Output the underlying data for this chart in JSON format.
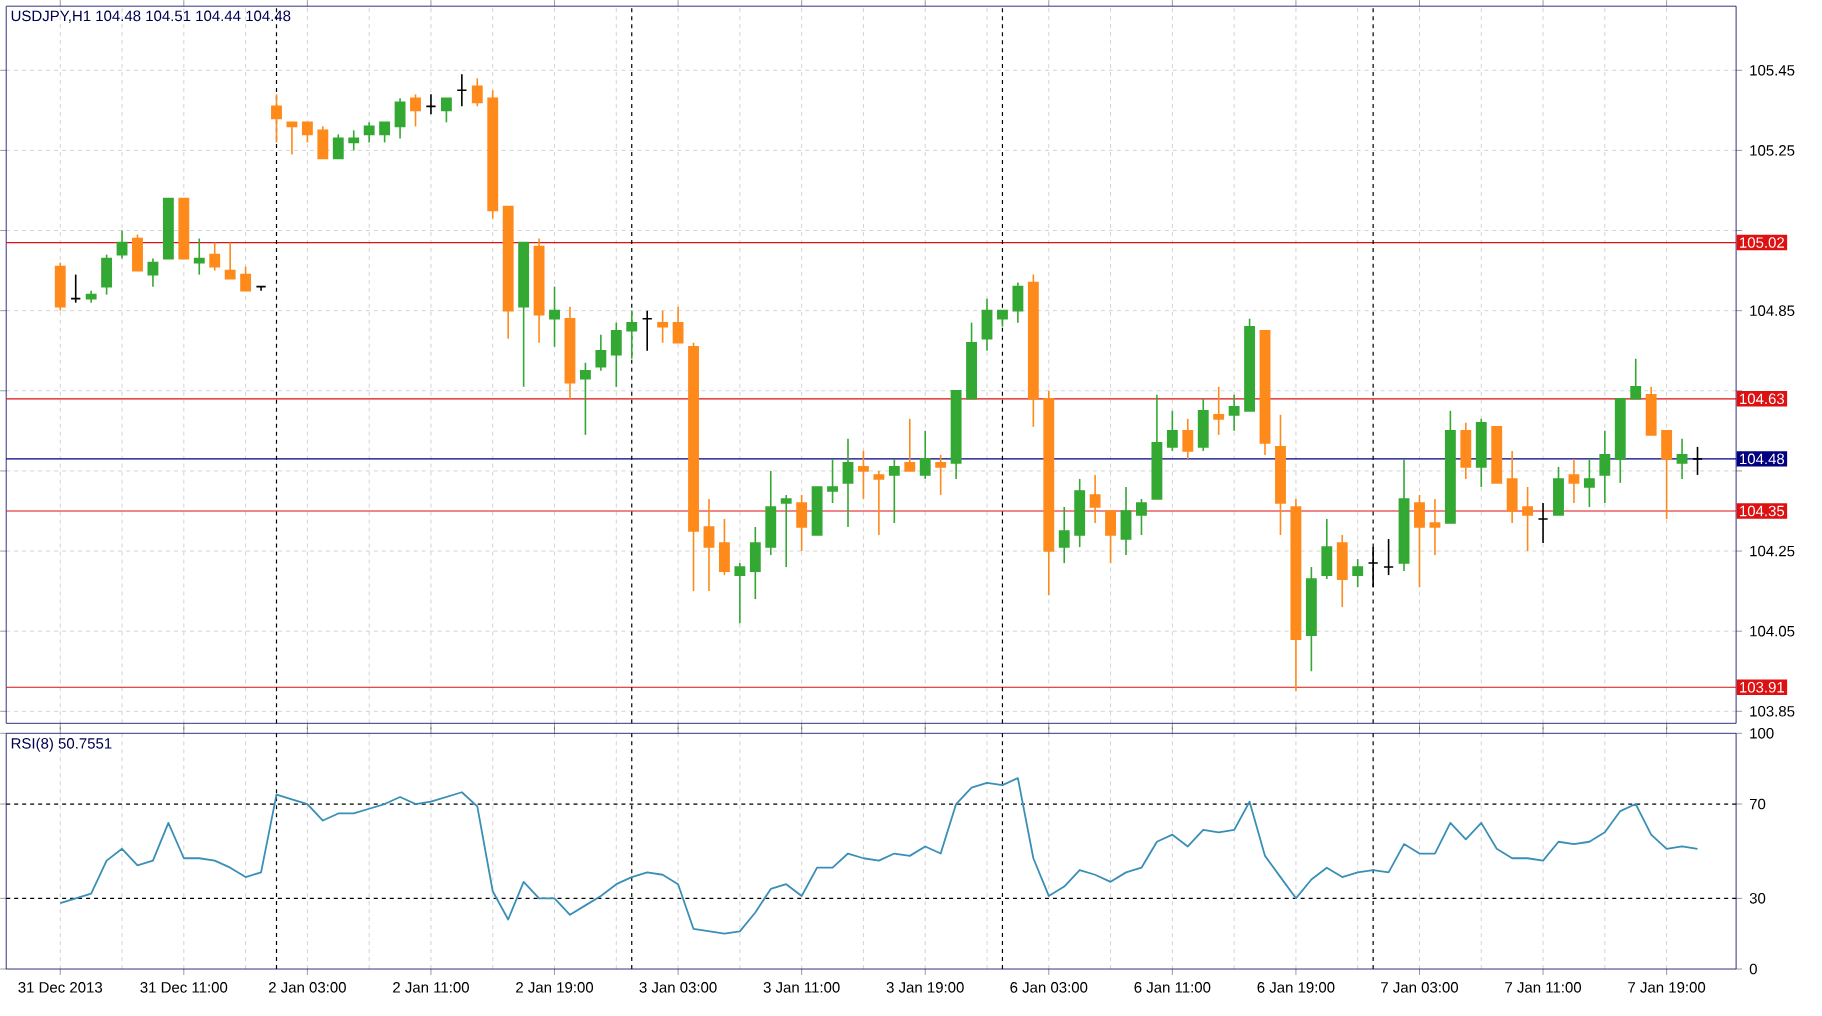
{
  "chart_data": [
    {
      "type": "candlestick",
      "title": "USDJPY,H1 104.48 104.51 104.44 104.48",
      "categories": [
        null,
        null,
        null,
        null,
        null,
        null,
        null,
        null,
        null,
        null,
        null,
        null,
        null,
        null,
        null,
        null,
        null,
        null,
        null,
        null,
        null,
        null,
        null,
        null,
        null,
        null,
        null,
        null,
        null,
        null,
        null,
        null,
        null,
        null,
        null,
        null,
        null,
        null,
        null,
        null,
        null,
        null,
        null,
        null,
        null,
        null,
        null,
        null,
        null,
        null,
        null,
        null,
        null,
        null,
        null,
        null,
        null,
        null,
        null,
        null,
        null,
        null,
        null,
        null,
        null,
        null,
        null,
        null,
        null,
        null,
        null,
        null,
        null,
        null,
        null,
        null,
        null,
        null,
        null,
        null,
        null,
        null,
        null,
        null,
        null,
        null,
        null,
        null,
        null,
        null,
        null,
        null,
        null,
        null,
        null,
        null,
        null,
        null,
        null,
        null,
        null,
        null,
        null,
        null,
        null,
        null,
        null
      ],
      "ohlc": [
        [
          104.96,
          104.97,
          104.85,
          104.86
        ],
        [
          104.88,
          104.94,
          104.87,
          104.88
        ],
        [
          104.88,
          104.9,
          104.87,
          104.89
        ],
        [
          104.91,
          104.99,
          104.89,
          104.98
        ],
        [
          104.99,
          105.05,
          104.98,
          105.02
        ],
        [
          105.03,
          105.04,
          104.95,
          104.95
        ],
        [
          104.94,
          104.98,
          104.91,
          104.97
        ],
        [
          104.98,
          105.13,
          104.98,
          105.13
        ],
        [
          105.13,
          105.13,
          104.98,
          104.98
        ],
        [
          104.97,
          105.03,
          104.94,
          104.98
        ],
        [
          104.99,
          105.02,
          104.95,
          104.96
        ],
        [
          104.95,
          105.02,
          104.93,
          104.93
        ],
        [
          104.94,
          104.96,
          104.9,
          104.9
        ],
        [
          104.91,
          104.91,
          104.9,
          104.91
        ],
        [
          105.36,
          105.39,
          105.27,
          105.33
        ],
        [
          105.32,
          105.32,
          105.24,
          105.31
        ],
        [
          105.32,
          105.32,
          105.27,
          105.29
        ],
        [
          105.3,
          105.31,
          105.23,
          105.23
        ],
        [
          105.23,
          105.29,
          105.23,
          105.28
        ],
        [
          105.27,
          105.3,
          105.25,
          105.28
        ],
        [
          105.29,
          105.32,
          105.27,
          105.31
        ],
        [
          105.29,
          105.32,
          105.27,
          105.32
        ],
        [
          105.31,
          105.38,
          105.28,
          105.37
        ],
        [
          105.38,
          105.39,
          105.31,
          105.35
        ],
        [
          105.36,
          105.39,
          105.34,
          105.36
        ],
        [
          105.35,
          105.38,
          105.32,
          105.38
        ],
        [
          105.4,
          105.44,
          105.36,
          105.4
        ],
        [
          105.41,
          105.43,
          105.36,
          105.37
        ],
        [
          105.38,
          105.4,
          105.08,
          105.1
        ],
        [
          105.11,
          105.11,
          104.78,
          104.85
        ],
        [
          104.86,
          105.02,
          104.66,
          105.02
        ],
        [
          105.01,
          105.03,
          104.77,
          104.84
        ],
        [
          104.83,
          104.91,
          104.76,
          104.85
        ],
        [
          104.83,
          104.86,
          104.63,
          104.67
        ],
        [
          104.68,
          104.72,
          104.54,
          104.7
        ],
        [
          104.71,
          104.79,
          104.7,
          104.75
        ],
        [
          104.74,
          104.82,
          104.66,
          104.8
        ],
        [
          104.8,
          104.85,
          104.73,
          104.82
        ],
        [
          104.83,
          104.85,
          104.75,
          104.83
        ],
        [
          104.82,
          104.85,
          104.77,
          104.81
        ],
        [
          104.82,
          104.86,
          104.77,
          104.77
        ],
        [
          104.76,
          104.77,
          104.15,
          104.3
        ],
        [
          104.31,
          104.38,
          104.15,
          104.26
        ],
        [
          104.27,
          104.33,
          104.19,
          104.2
        ],
        [
          104.19,
          104.22,
          104.07,
          104.21
        ],
        [
          104.2,
          104.31,
          104.13,
          104.27
        ],
        [
          104.26,
          104.45,
          104.24,
          104.36
        ],
        [
          104.37,
          104.39,
          104.21,
          104.38
        ],
        [
          104.37,
          104.39,
          104.25,
          104.31
        ],
        [
          104.29,
          104.41,
          104.29,
          104.41
        ],
        [
          104.4,
          104.48,
          104.37,
          104.41
        ],
        [
          104.42,
          104.53,
          104.31,
          104.47
        ],
        [
          104.46,
          104.5,
          104.38,
          104.45
        ],
        [
          104.44,
          104.45,
          104.29,
          104.43
        ],
        [
          104.44,
          104.48,
          104.32,
          104.46
        ],
        [
          104.47,
          104.58,
          104.45,
          104.45
        ],
        [
          104.44,
          104.55,
          104.43,
          104.48
        ],
        [
          104.47,
          104.49,
          104.39,
          104.46
        ],
        [
          104.47,
          104.65,
          104.43,
          104.65
        ],
        [
          104.63,
          104.82,
          104.63,
          104.77
        ],
        [
          104.78,
          104.88,
          104.75,
          104.85
        ],
        [
          104.83,
          104.85,
          104.81,
          104.85
        ],
        [
          104.85,
          104.92,
          104.82,
          104.91
        ],
        [
          104.92,
          104.94,
          104.56,
          104.63
        ],
        [
          104.63,
          104.65,
          104.14,
          104.25
        ],
        [
          104.26,
          104.36,
          104.22,
          104.3
        ],
        [
          104.29,
          104.43,
          104.26,
          104.4
        ],
        [
          104.39,
          104.44,
          104.32,
          104.36
        ],
        [
          104.35,
          104.35,
          104.22,
          104.29
        ],
        [
          104.28,
          104.41,
          104.24,
          104.35
        ],
        [
          104.34,
          104.38,
          104.29,
          104.37
        ],
        [
          104.38,
          104.64,
          104.38,
          104.52
        ],
        [
          104.51,
          104.6,
          104.5,
          104.55
        ],
        [
          104.55,
          104.58,
          104.48,
          104.5
        ],
        [
          104.51,
          104.63,
          104.5,
          104.6
        ],
        [
          104.59,
          104.66,
          104.54,
          104.58
        ],
        [
          104.59,
          104.64,
          104.55,
          104.61
        ],
        [
          104.6,
          104.83,
          104.6,
          104.81
        ],
        [
          104.8,
          104.8,
          104.49,
          104.52
        ],
        [
          104.51,
          104.59,
          104.29,
          104.37
        ],
        [
          104.36,
          104.38,
          103.9,
          104.03
        ],
        [
          104.04,
          104.21,
          103.95,
          104.18
        ],
        [
          104.19,
          104.33,
          104.18,
          104.26
        ],
        [
          104.27,
          104.29,
          104.11,
          104.18
        ],
        [
          104.19,
          104.23,
          104.16,
          104.21
        ],
        [
          104.22,
          104.26,
          104.16,
          104.22
        ],
        [
          104.21,
          104.28,
          104.19,
          104.21
        ],
        [
          104.22,
          104.48,
          104.2,
          104.38
        ],
        [
          104.37,
          104.39,
          104.16,
          104.31
        ],
        [
          104.32,
          104.38,
          104.24,
          104.31
        ],
        [
          104.32,
          104.6,
          104.32,
          104.55
        ],
        [
          104.55,
          104.57,
          104.43,
          104.46
        ],
        [
          104.46,
          104.58,
          104.41,
          104.57
        ],
        [
          104.56,
          104.56,
          104.42,
          104.42
        ],
        [
          104.43,
          104.5,
          104.32,
          104.35
        ],
        [
          104.36,
          104.41,
          104.25,
          104.34
        ],
        [
          104.33,
          104.37,
          104.27,
          104.33
        ],
        [
          104.34,
          104.46,
          104.34,
          104.43
        ],
        [
          104.44,
          104.48,
          104.37,
          104.42
        ],
        [
          104.41,
          104.48,
          104.36,
          104.43
        ],
        [
          104.44,
          104.55,
          104.37,
          104.49
        ],
        [
          104.48,
          104.63,
          104.42,
          104.63
        ],
        [
          104.63,
          104.73,
          104.63,
          104.66
        ],
        [
          104.64,
          104.66,
          104.54,
          104.54
        ],
        [
          104.55,
          104.55,
          104.33,
          104.48
        ],
        [
          104.47,
          104.53,
          104.43,
          104.49
        ],
        [
          104.48,
          104.51,
          104.44,
          104.48
        ]
      ],
      "colors": [
        "#ff8a1c",
        "#000000",
        "#33a833",
        "#33a833",
        "#33a833",
        "#ff8a1c",
        "#33a833",
        "#33a833",
        "#ff8a1c",
        "#33a833",
        "#ff8a1c",
        "#ff8a1c",
        "#ff8a1c",
        "#000000",
        "#ff8a1c",
        "#ff8a1c",
        "#ff8a1c",
        "#ff8a1c",
        "#33a833",
        "#33a833",
        "#33a833",
        "#33a833",
        "#33a833",
        "#ff8a1c",
        "#000000",
        "#33a833",
        "#000000",
        "#ff8a1c",
        "#ff8a1c",
        "#ff8a1c",
        "#33a833",
        "#ff8a1c",
        "#33a833",
        "#ff8a1c",
        "#33a833",
        "#33a833",
        "#33a833",
        "#33a833",
        "#000000",
        "#ff8a1c",
        "#ff8a1c",
        "#ff8a1c",
        "#ff8a1c",
        "#ff8a1c",
        "#33a833",
        "#33a833",
        "#33a833",
        "#33a833",
        "#ff8a1c",
        "#33a833",
        "#33a833",
        "#33a833",
        "#ff8a1c",
        "#ff8a1c",
        "#33a833",
        "#ff8a1c",
        "#33a833",
        "#ff8a1c",
        "#33a833",
        "#33a833",
        "#33a833",
        "#33a833",
        "#33a833",
        "#ff8a1c",
        "#ff8a1c",
        "#33a833",
        "#33a833",
        "#ff8a1c",
        "#ff8a1c",
        "#33a833",
        "#33a833",
        "#33a833",
        "#33a833",
        "#ff8a1c",
        "#33a833",
        "#ff8a1c",
        "#33a833",
        "#33a833",
        "#ff8a1c",
        "#ff8a1c",
        "#ff8a1c",
        "#33a833",
        "#33a833",
        "#ff8a1c",
        "#33a833",
        "#000000",
        "#000000",
        "#33a833",
        "#ff8a1c",
        "#ff8a1c",
        "#33a833",
        "#ff8a1c",
        "#33a833",
        "#ff8a1c",
        "#ff8a1c",
        "#ff8a1c",
        "#000000",
        "#33a833",
        "#ff8a1c",
        "#33a833",
        "#33a833",
        "#33a833",
        "#33a833",
        "#ff8a1c",
        "#ff8a1c",
        "#33a833",
        "#000000"
      ],
      "ylim": [
        103.82,
        105.61
      ],
      "yticks": [
        103.85,
        104.05,
        104.25,
        {
          "value": 104.45,
          "label": null
        },
        {
          "value": 104.65,
          "label": null
        },
        104.85,
        {
          "value": 105.05,
          "label": null
        },
        105.25,
        105.45
      ],
      "grid": true,
      "tick_labels": "y",
      "ref_lines": [
        {
          "axis": "y",
          "value": 105.02,
          "label": "105.02",
          "color": "#dd1111"
        },
        {
          "axis": "y",
          "value": 104.63,
          "label": "104.63",
          "color": "#dd1111"
        },
        {
          "axis": "y",
          "value": 104.48,
          "label": "104.48",
          "color": "#000080"
        },
        {
          "axis": "y",
          "value": 104.35,
          "label": "104.35",
          "color": "#dd1111"
        },
        {
          "axis": "y",
          "value": 103.91,
          "label": "103.91",
          "color": "#dd1111"
        }
      ]
    },
    {
      "type": "line",
      "title": "RSI(8) 50.7551",
      "categories": [
        "31 Dec 2013",
        null,
        null,
        null,
        null,
        null,
        null,
        null,
        "31 Dec 11:00",
        null,
        null,
        null,
        null,
        null,
        null,
        null,
        "2 Jan 03:00",
        null,
        null,
        null,
        null,
        null,
        null,
        null,
        "2 Jan 11:00",
        null,
        null,
        null,
        null,
        null,
        null,
        null,
        "2 Jan 19:00",
        null,
        null,
        null,
        null,
        null,
        null,
        null,
        "3 Jan 03:00",
        null,
        null,
        null,
        null,
        null,
        null,
        null,
        "3 Jan 11:00",
        null,
        null,
        null,
        null,
        null,
        null,
        null,
        "3 Jan 19:00",
        null,
        null,
        null,
        null,
        null,
        null,
        null,
        "6 Jan 03:00",
        null,
        null,
        null,
        null,
        null,
        null,
        null,
        "6 Jan 11:00",
        null,
        null,
        null,
        null,
        null,
        null,
        null,
        "6 Jan 19:00",
        null,
        null,
        null,
        null,
        null,
        null,
        null,
        "7 Jan 03:00",
        null,
        null,
        null,
        null,
        null,
        null,
        null,
        "7 Jan 11:00",
        null,
        null,
        null,
        null,
        null,
        null,
        null,
        "7 Jan 19:00",
        null,
        null
      ],
      "series": [
        {
          "color": "#3a8fb7",
          "values": [
            28,
            30,
            32,
            46,
            51,
            44,
            46,
            62,
            47,
            47,
            46,
            43,
            39,
            41,
            74,
            72,
            70,
            63,
            66,
            66,
            68,
            70,
            73,
            70,
            71,
            73,
            75,
            69,
            33,
            21,
            37,
            30,
            30,
            23,
            27,
            31,
            36,
            39,
            41,
            40,
            36,
            17,
            16,
            15,
            16,
            24,
            34,
            36,
            31,
            43,
            43,
            49,
            47,
            46,
            49,
            48,
            52,
            49,
            70,
            77,
            79,
            78,
            81,
            47,
            31,
            35,
            42,
            40,
            37,
            41,
            43,
            54,
            57,
            52,
            59,
            58,
            59,
            71,
            48,
            39,
            30,
            38,
            43,
            39,
            41,
            42,
            41,
            53,
            49,
            49,
            62,
            55,
            62,
            51,
            47,
            47,
            46,
            54,
            53,
            54,
            58,
            67,
            70,
            57,
            51,
            52,
            51
          ]
        }
      ],
      "ylim": [
        0,
        100
      ],
      "yticks": [
        0,
        30,
        70,
        100
      ],
      "grid": "x",
      "ref_lines": [
        {
          "axis": "y",
          "value": 30,
          "color": "#000000",
          "line_style": "dashed"
        },
        {
          "axis": "y",
          "value": 70,
          "color": "#000000",
          "line_style": "dashed"
        }
      ]
    }
  ]
}
